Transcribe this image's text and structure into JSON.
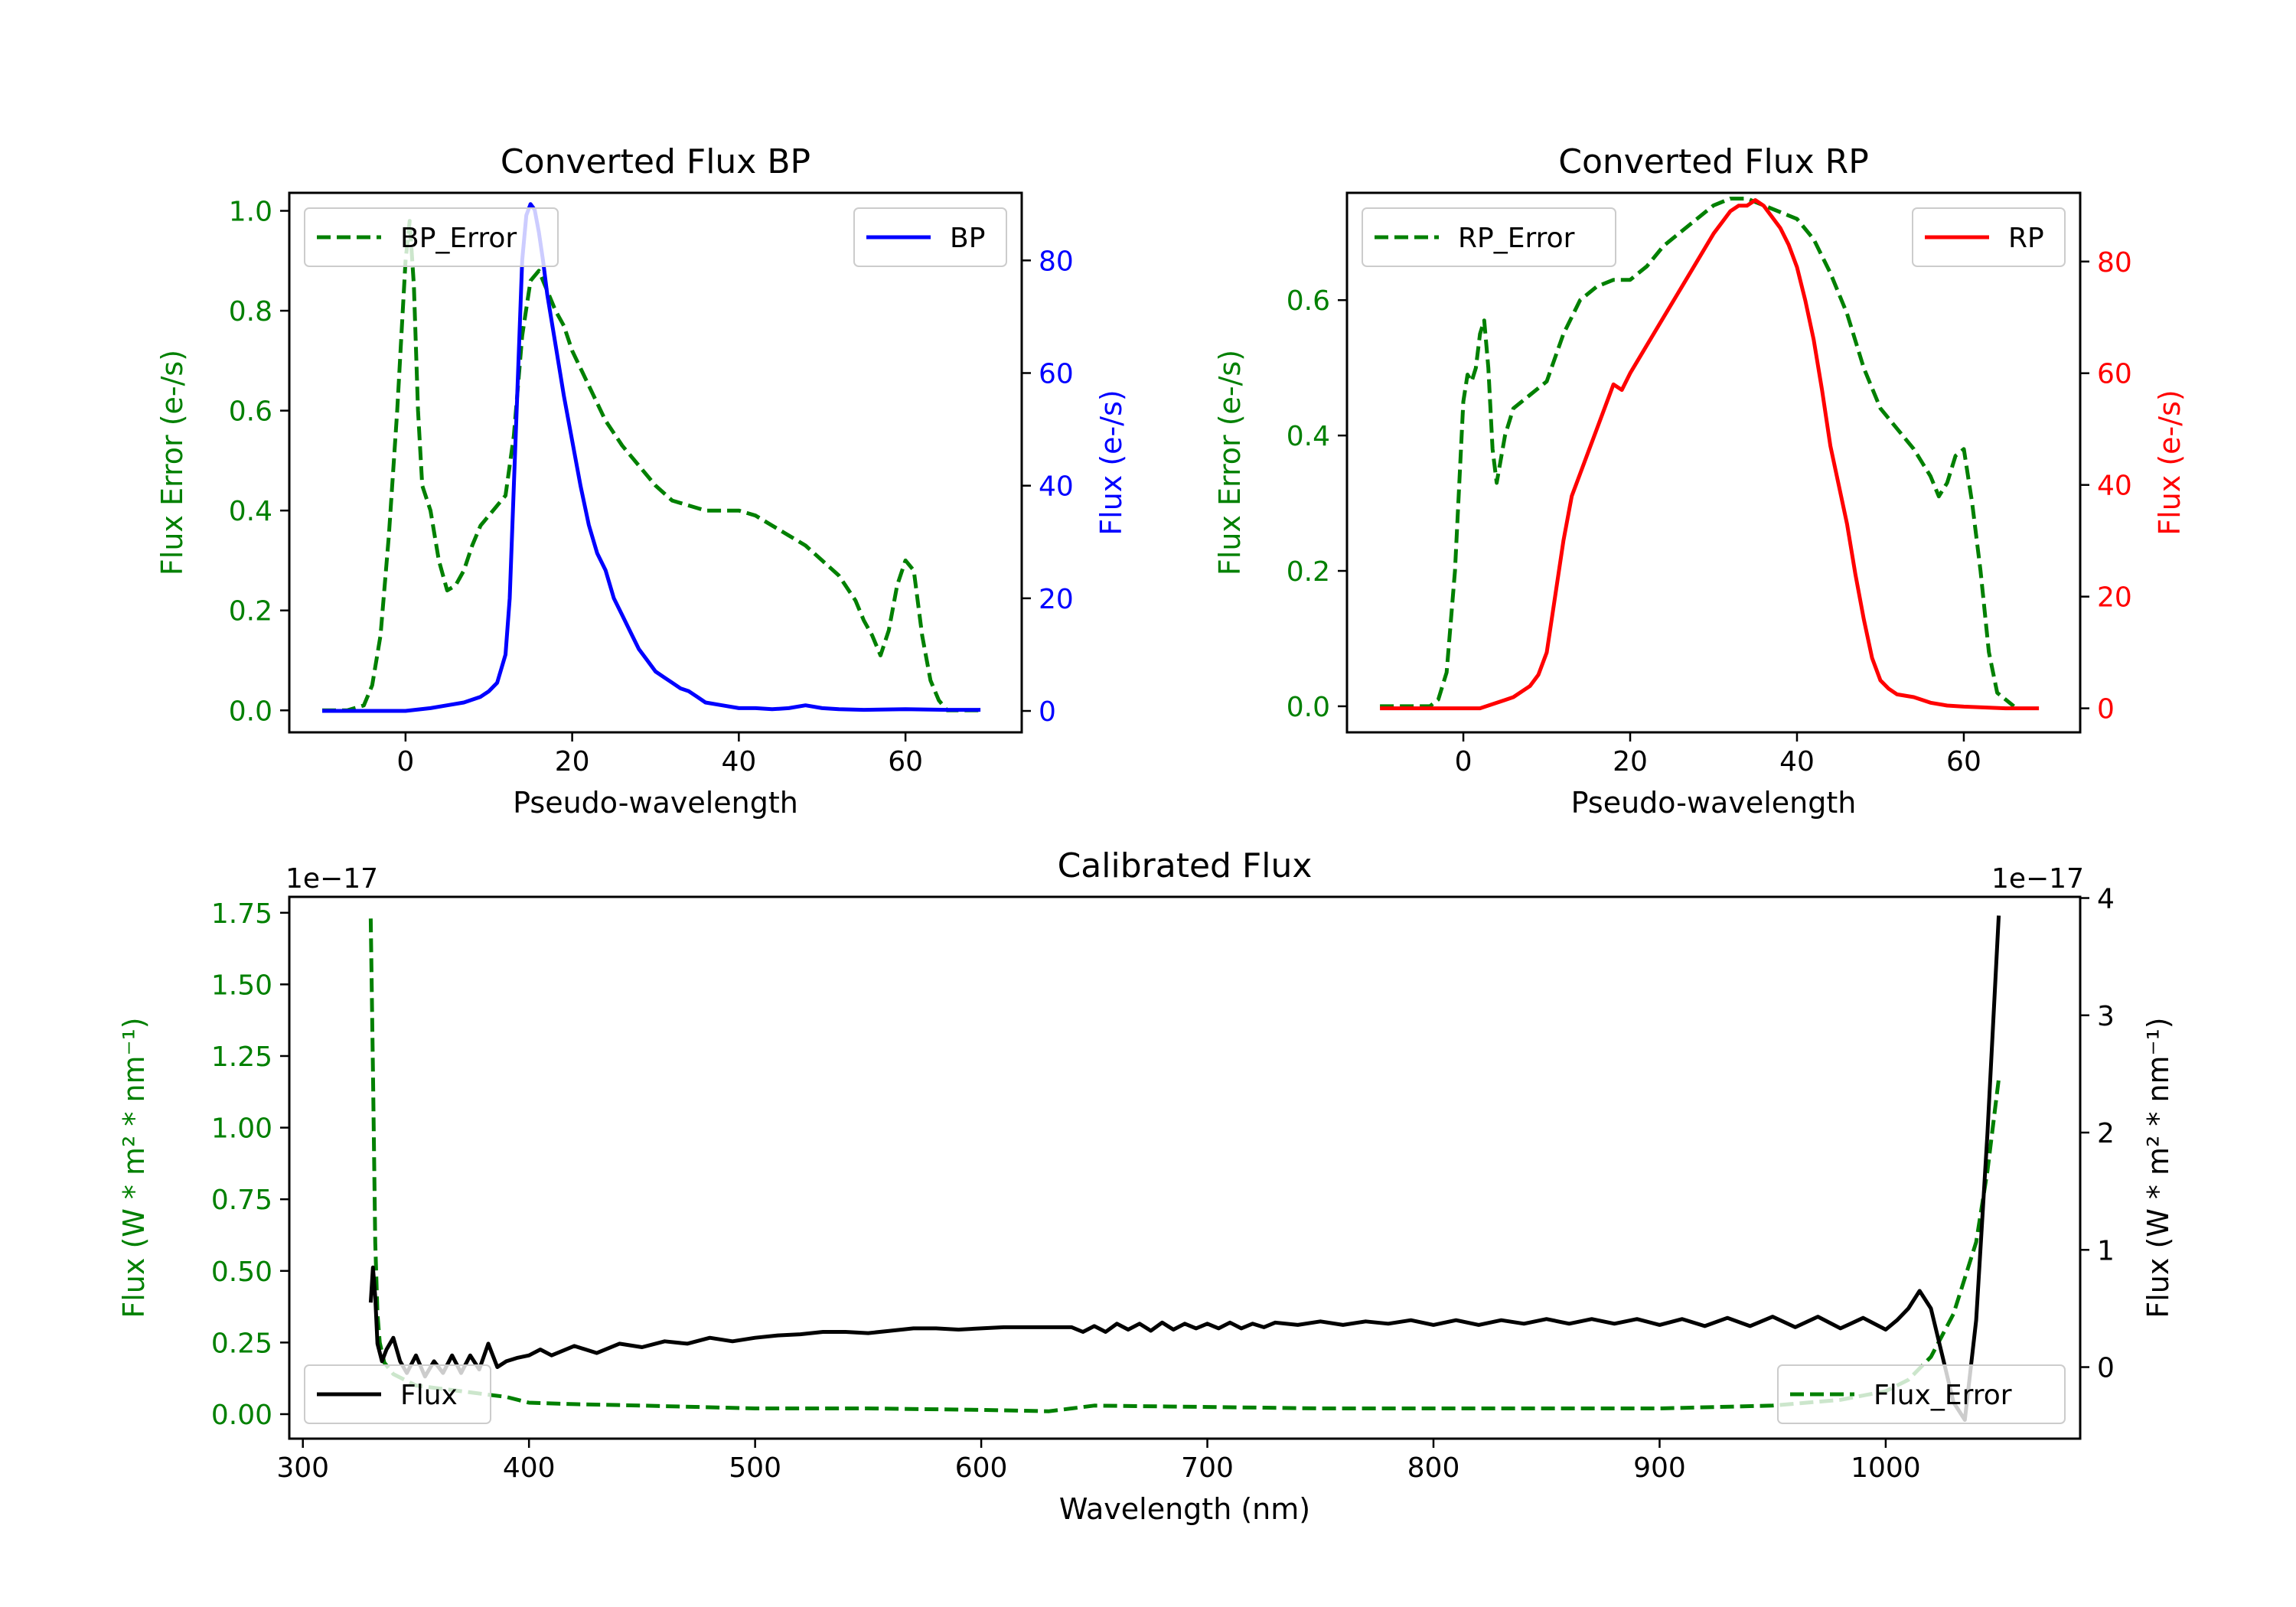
{
  "chart_data": [
    {
      "type": "line",
      "title": "Converted Flux BP",
      "xlabel": "Pseudo-wavelength",
      "xlim": [
        -13.95,
        73.95
      ],
      "xticks": [
        0,
        20,
        40,
        60
      ],
      "left_axis": {
        "label": "Flux Error (e-/s)",
        "color": "#008000",
        "ylim": [
          -0.044,
          1.036
        ],
        "ticks": [
          0.0,
          0.2,
          0.4,
          0.6,
          0.8,
          1.0
        ],
        "tick_labels": [
          "0.0",
          "0.2",
          "0.4",
          "0.6",
          "0.8",
          "1.0"
        ]
      },
      "right_axis": {
        "label": "Flux (e-/s)",
        "color": "#0000ff",
        "ylim": [
          -3.8,
          92
        ],
        "ticks": [
          0,
          20,
          40,
          60,
          80
        ],
        "tick_labels": [
          "0",
          "20",
          "40",
          "60",
          "80"
        ]
      },
      "legend_left": {
        "label": "BP_Error",
        "position": "upper-left"
      },
      "legend_right": {
        "label": "BP",
        "position": "upper-right"
      },
      "series": [
        {
          "name": "BP_Error",
          "axis": "left",
          "color": "#008000",
          "style": "dashed",
          "x": [
            -10,
            -7,
            -5,
            -4,
            -3,
            -2,
            -1,
            0,
            0.5,
            1,
            1.5,
            2,
            3,
            4,
            5,
            6,
            7,
            8,
            9,
            10,
            12,
            13,
            14,
            15,
            16,
            17,
            18,
            19,
            20,
            22,
            24,
            26,
            28,
            30,
            32,
            34,
            36,
            38,
            40,
            42,
            44,
            46,
            48,
            50,
            52,
            54,
            55,
            56,
            57,
            58,
            59,
            60,
            61,
            62,
            63,
            64,
            65,
            67,
            69
          ],
          "y": [
            0.0,
            0.0,
            0.01,
            0.05,
            0.15,
            0.35,
            0.6,
            0.9,
            0.98,
            0.85,
            0.6,
            0.45,
            0.4,
            0.3,
            0.24,
            0.25,
            0.28,
            0.33,
            0.37,
            0.39,
            0.43,
            0.55,
            0.75,
            0.86,
            0.88,
            0.84,
            0.8,
            0.77,
            0.72,
            0.65,
            0.58,
            0.53,
            0.49,
            0.45,
            0.42,
            0.41,
            0.4,
            0.4,
            0.4,
            0.39,
            0.37,
            0.35,
            0.33,
            0.3,
            0.27,
            0.22,
            0.18,
            0.15,
            0.11,
            0.16,
            0.25,
            0.3,
            0.28,
            0.15,
            0.06,
            0.02,
            0.0,
            0.0,
            0.0
          ]
        },
        {
          "name": "BP",
          "axis": "right",
          "color": "#0000ff",
          "style": "solid",
          "x": [
            -10,
            -5,
            0,
            3,
            5,
            7,
            9,
            10,
            11,
            12,
            12.5,
            13,
            13.5,
            14,
            14.5,
            15,
            15.5,
            16,
            16.5,
            17,
            18,
            19,
            20,
            21,
            22,
            23,
            24,
            25,
            26,
            27,
            28,
            29,
            30,
            31,
            32,
            33,
            34,
            35,
            36,
            38,
            40,
            42,
            44,
            46,
            48,
            50,
            52,
            55,
            60,
            65,
            69
          ],
          "y": [
            0,
            0,
            0,
            0.5,
            1,
            1.5,
            2.5,
            3.5,
            5,
            10,
            20,
            40,
            60,
            80,
            88,
            90,
            89,
            85,
            80,
            74,
            65,
            56,
            48,
            40,
            33,
            28,
            25,
            20,
            17,
            14,
            11,
            9,
            7,
            6,
            5,
            4,
            3.5,
            2.5,
            1.5,
            1,
            0.5,
            0.5,
            0.3,
            0.5,
            1,
            0.5,
            0.3,
            0.2,
            0.3,
            0.2,
            0.2
          ]
        }
      ]
    },
    {
      "type": "line",
      "title": "Converted Flux RP",
      "xlabel": "Pseudo-wavelength",
      "xlim": [
        -13.95,
        73.95
      ],
      "xticks": [
        0,
        20,
        40,
        60
      ],
      "left_axis": {
        "label": "Flux Error (e-/s)",
        "color": "#008000",
        "ylim": [
          -0.0385,
          0.7585
        ],
        "ticks": [
          0.0,
          0.2,
          0.4,
          0.6
        ],
        "tick_labels": [
          "0.0",
          "0.2",
          "0.4",
          "0.6"
        ]
      },
      "right_axis": {
        "label": "Flux (e-/s)",
        "color": "#ff0000",
        "ylim": [
          -4.3,
          92.3
        ],
        "ticks": [
          0,
          20,
          40,
          60,
          80
        ],
        "tick_labels": [
          "0",
          "20",
          "40",
          "60",
          "80"
        ]
      },
      "legend_left": {
        "label": "RP_Error",
        "position": "upper-left"
      },
      "legend_right": {
        "label": "RP",
        "position": "upper-right"
      },
      "series": [
        {
          "name": "RP_Error",
          "axis": "left",
          "color": "#008000",
          "style": "dashed",
          "x": [
            -10,
            -4,
            -3,
            -2,
            -1,
            0,
            0.5,
            1,
            1.5,
            2,
            2.5,
            3,
            3.5,
            4,
            5,
            6,
            8,
            10,
            12,
            14,
            16,
            18,
            20,
            22,
            24,
            26,
            28,
            30,
            32,
            34,
            36,
            38,
            40,
            42,
            44,
            46,
            48,
            50,
            52,
            54,
            55,
            56,
            57,
            58,
            59,
            60,
            61,
            62,
            63,
            64,
            66
          ],
          "y": [
            0.0,
            0.0,
            0.01,
            0.05,
            0.2,
            0.45,
            0.49,
            0.48,
            0.5,
            0.55,
            0.57,
            0.5,
            0.38,
            0.33,
            0.4,
            0.44,
            0.46,
            0.48,
            0.55,
            0.6,
            0.62,
            0.63,
            0.63,
            0.65,
            0.68,
            0.7,
            0.72,
            0.74,
            0.75,
            0.75,
            0.74,
            0.73,
            0.72,
            0.69,
            0.64,
            0.58,
            0.5,
            0.44,
            0.41,
            0.38,
            0.36,
            0.34,
            0.31,
            0.33,
            0.37,
            0.38,
            0.3,
            0.2,
            0.08,
            0.02,
            0.0
          ]
        },
        {
          "name": "RP",
          "axis": "right",
          "color": "#ff0000",
          "style": "solid",
          "x": [
            -10,
            -5,
            0,
            2,
            3,
            5,
            6,
            7,
            8,
            9,
            10,
            11,
            12,
            13,
            14,
            15,
            16,
            17,
            18,
            19,
            20,
            22,
            24,
            26,
            28,
            30,
            31,
            32,
            33,
            34,
            35,
            36,
            37,
            38,
            39,
            40,
            41,
            42,
            43,
            44,
            45,
            46,
            47,
            48,
            49,
            50,
            51,
            52,
            54,
            56,
            58,
            60,
            65,
            69
          ],
          "y": [
            0,
            0,
            0,
            0,
            0.5,
            1.5,
            2,
            3,
            4,
            6,
            10,
            20,
            30,
            38,
            42,
            46,
            50,
            54,
            58,
            57,
            60,
            65,
            70,
            75,
            80,
            85,
            87,
            89,
            90,
            90,
            91,
            90,
            88,
            86,
            83,
            79,
            73,
            66,
            57,
            47,
            40,
            33,
            24,
            16,
            9,
            5,
            3.5,
            2.5,
            2,
            1,
            0.5,
            0.3,
            0,
            0
          ]
        }
      ]
    },
    {
      "type": "line",
      "title": "Calibrated Flux",
      "xlabel": "Wavelength (nm)",
      "xlim": [
        294,
        1086
      ],
      "xticks": [
        300,
        400,
        500,
        600,
        700,
        800,
        900,
        1000
      ],
      "left_axis": {
        "label": "Flux (W * m² * nm⁻¹)",
        "color": "#008000",
        "offset_text": "1e−17",
        "ylim": [
          -0.0855,
          1.8055
        ],
        "ticks": [
          0.0,
          0.25,
          0.5,
          0.75,
          1.0,
          1.25,
          1.5,
          1.75
        ],
        "tick_labels": [
          "0.00",
          "0.25",
          "0.50",
          "0.75",
          "1.00",
          "1.25",
          "1.50",
          "1.75"
        ]
      },
      "right_axis": {
        "label": "Flux (W * m² * nm⁻¹)",
        "color": "#000000",
        "offset_text": "1e−17",
        "ylim": [
          -0.61,
          4.01
        ],
        "ticks": [
          0,
          1,
          2,
          3,
          4
        ],
        "tick_labels": [
          "0",
          "1",
          "2",
          "3",
          "4"
        ]
      },
      "legend_left": {
        "label": "Flux",
        "position": "lower-left"
      },
      "legend_right": {
        "label": "Flux_Error",
        "position": "lower-right"
      },
      "series": [
        {
          "name": "Flux_Error",
          "axis": "left",
          "color": "#008000",
          "style": "dashed",
          "x": [
            330,
            331,
            332,
            333,
            334,
            336,
            340,
            345,
            350,
            360,
            370,
            380,
            390,
            400,
            420,
            450,
            500,
            550,
            600,
            630,
            640,
            650,
            700,
            750,
            800,
            850,
            900,
            950,
            980,
            1000,
            1010,
            1020,
            1030,
            1040,
            1045,
            1050
          ],
          "y": [
            1.73,
            1.2,
            0.6,
            0.35,
            0.25,
            0.18,
            0.14,
            0.12,
            0.1,
            0.09,
            0.08,
            0.07,
            0.06,
            0.04,
            0.035,
            0.03,
            0.02,
            0.02,
            0.015,
            0.01,
            0.02,
            0.03,
            0.025,
            0.02,
            0.02,
            0.02,
            0.02,
            0.03,
            0.05,
            0.08,
            0.12,
            0.2,
            0.35,
            0.6,
            0.85,
            1.17
          ]
        },
        {
          "name": "Flux",
          "axis": "right",
          "color": "#000000",
          "style": "solid",
          "x": [
            330,
            331,
            332,
            333,
            335,
            337,
            340,
            343,
            346,
            350,
            354,
            358,
            362,
            366,
            370,
            374,
            378,
            382,
            386,
            390,
            395,
            400,
            405,
            410,
            420,
            430,
            440,
            450,
            460,
            470,
            480,
            490,
            500,
            510,
            520,
            530,
            540,
            550,
            560,
            570,
            580,
            590,
            600,
            610,
            620,
            630,
            640,
            645,
            650,
            655,
            660,
            665,
            670,
            675,
            680,
            685,
            690,
            695,
            700,
            705,
            710,
            715,
            720,
            725,
            730,
            740,
            750,
            760,
            770,
            780,
            790,
            800,
            810,
            820,
            830,
            840,
            850,
            860,
            870,
            880,
            890,
            900,
            910,
            920,
            930,
            940,
            950,
            960,
            970,
            980,
            990,
            1000,
            1005,
            1010,
            1015,
            1020,
            1025,
            1030,
            1035,
            1040,
            1045,
            1050
          ],
          "y": [
            0.55,
            0.85,
            0.6,
            0.2,
            0.05,
            0.15,
            0.25,
            0.05,
            -0.05,
            0.1,
            -0.08,
            0.05,
            -0.05,
            0.1,
            -0.05,
            0.1,
            -0.02,
            0.2,
            0.0,
            0.05,
            0.08,
            0.1,
            0.15,
            0.1,
            0.18,
            0.12,
            0.2,
            0.17,
            0.22,
            0.2,
            0.25,
            0.22,
            0.25,
            0.27,
            0.28,
            0.3,
            0.3,
            0.29,
            0.31,
            0.33,
            0.33,
            0.32,
            0.33,
            0.34,
            0.34,
            0.34,
            0.34,
            0.3,
            0.35,
            0.3,
            0.37,
            0.32,
            0.37,
            0.31,
            0.38,
            0.32,
            0.37,
            0.33,
            0.37,
            0.33,
            0.38,
            0.33,
            0.37,
            0.34,
            0.38,
            0.36,
            0.39,
            0.36,
            0.39,
            0.37,
            0.4,
            0.36,
            0.4,
            0.36,
            0.4,
            0.37,
            0.41,
            0.37,
            0.41,
            0.37,
            0.41,
            0.36,
            0.41,
            0.35,
            0.42,
            0.35,
            0.43,
            0.34,
            0.43,
            0.33,
            0.42,
            0.32,
            0.4,
            0.5,
            0.65,
            0.5,
            0.1,
            -0.3,
            -0.45,
            0.4,
            2.0,
            3.85
          ]
        }
      ]
    }
  ]
}
